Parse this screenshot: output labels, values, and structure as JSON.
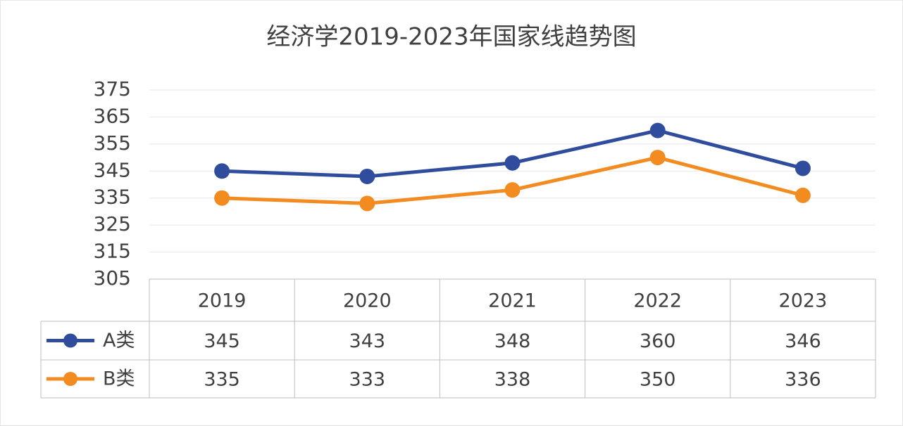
{
  "chart_data": {
    "type": "line",
    "title": "经济学2019-2023年国家线趋势图",
    "categories": [
      "2019",
      "2020",
      "2021",
      "2022",
      "2023"
    ],
    "series": [
      {
        "name": "A类",
        "color": "#2f4d9c",
        "values": [
          345,
          343,
          348,
          360,
          346
        ]
      },
      {
        "name": "B类",
        "color": "#f28b20",
        "values": [
          335,
          333,
          338,
          350,
          336
        ]
      }
    ],
    "ylim": [
      305,
      375
    ],
    "yticks": [
      305,
      315,
      325,
      335,
      345,
      355,
      365,
      375
    ],
    "grid": true
  }
}
